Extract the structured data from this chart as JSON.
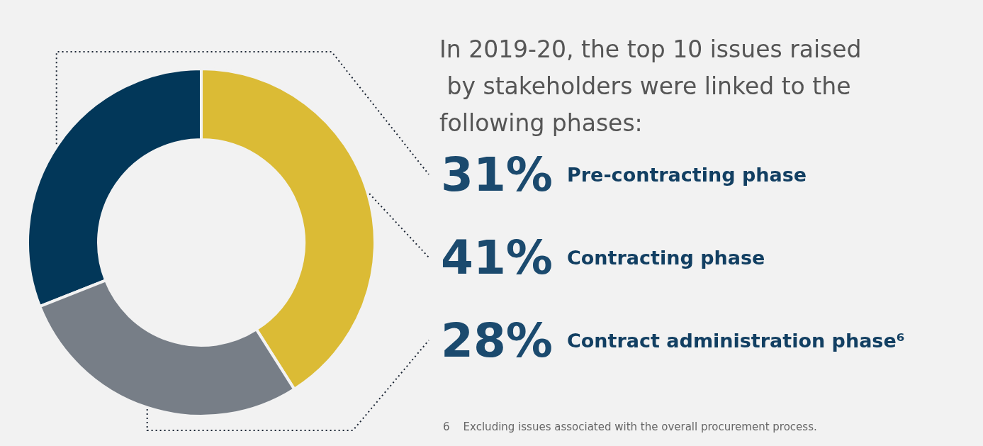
{
  "chart_data": {
    "type": "donut",
    "title": "In 2019-20, the top 10 issues raised by stakeholders were linked to the following phases:",
    "categories": [
      "Pre-contracting phase",
      "Contracting phase",
      "Contract administration phase⁶"
    ],
    "values": [
      31,
      41,
      28
    ],
    "value_labels": [
      "31%",
      "41%",
      "28%"
    ],
    "colors": [
      "#023759",
      "#dbbb35",
      "#777e87"
    ],
    "annotations": [
      "6    Excluding issues associated with the overall procurement process."
    ]
  }
}
